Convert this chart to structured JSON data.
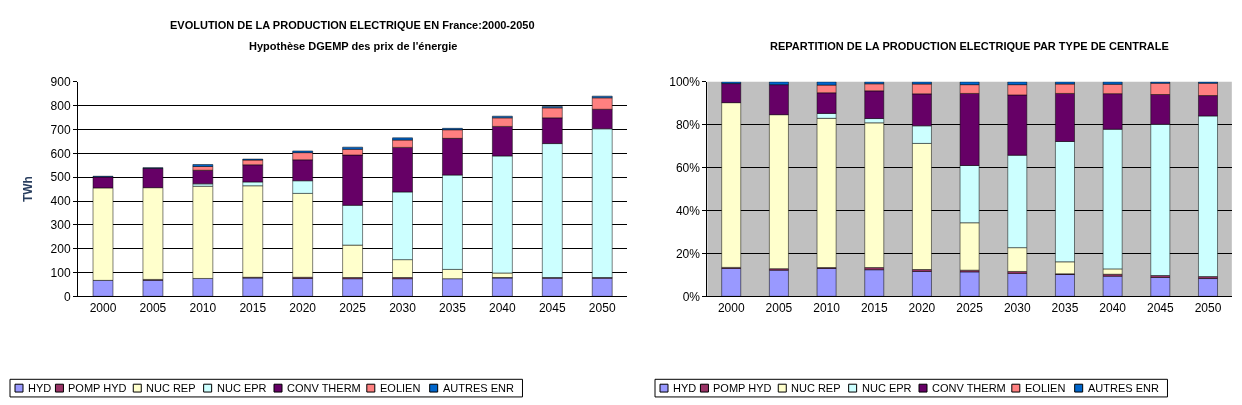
{
  "chart_data": [
    {
      "type": "bar",
      "stacked": true,
      "title": "EVOLUTION DE LA PRODUCTION ELECTRIQUE EN France:2000-2050",
      "subtitle": "Hypothèse DGEMP des prix de l'énergie",
      "ylabel": "TWh",
      "categories": [
        "2000",
        "2005",
        "2010",
        "2015",
        "2020",
        "2025",
        "2030",
        "2035",
        "2040",
        "2045",
        "2050"
      ],
      "series": [
        {
          "name": "HYD",
          "color": "#9999ff",
          "values": [
            67,
            67,
            75,
            77,
            75,
            74,
            74,
            74,
            77,
            76,
            76
          ]
        },
        {
          "name": "POMP HYD",
          "color": "#993366",
          "values": [
            null,
            4,
            null,
            3,
            5,
            5,
            5,
            null,
            2,
            3,
            3
          ]
        },
        {
          "name": "NUC REP",
          "color": "#ffffcc",
          "values": [
            388,
            385,
            387,
            384,
            352,
            136,
            75,
            39,
            19,
            0,
            0
          ]
        },
        {
          "name": "NUC EPR",
          "color": "#ccffff",
          "values": [
            0,
            0,
            10,
            16,
            53,
            167,
            284,
            396,
            491,
            562,
            624
          ]
        },
        {
          "name": "CONV THERM",
          "color": "#660066",
          "values": [
            46,
            81,
            57,
            72,
            88,
            211,
            187,
            154,
            124,
            108,
            82
          ]
        },
        {
          "name": "EOLIEN",
          "color": "#ff8080",
          "values": [
            0,
            0,
            16,
            20,
            30,
            24,
            31,
            36,
            36,
            42,
            48
          ]
        },
        {
          "name": "AUTRES ENR",
          "color": "#0066cc",
          "values": [
            3,
            3,
            8,
            4,
            7,
            9,
            9,
            6,
            7,
            6,
            7
          ]
        }
      ],
      "ylim": [
        0,
        900
      ],
      "yticks": [
        0,
        100,
        200,
        300,
        400,
        500,
        600,
        700,
        800,
        900
      ],
      "grid": "y",
      "legend": "bottom"
    },
    {
      "type": "bar",
      "stacked": true,
      "title": "REPARTITION DE LA PRODUCTION ELECTRIQUE PAR TYPE DE CENTRALE",
      "categories": [
        "2000",
        "2005",
        "2010",
        "2015",
        "2020",
        "2025",
        "2030",
        "2035",
        "2040",
        "2045",
        "2050"
      ],
      "series": [
        {
          "name": "HYD",
          "color": "#9999ff",
          "values": [
            13.0,
            12.2,
            13.0,
            12.4,
            11.6,
            11.4,
            10.7,
            10.2,
            9.4,
            8.8,
            8.3
          ]
        },
        {
          "name": "POMP HYD",
          "color": "#993366",
          "values": [
            0.5,
            0.7,
            0.4,
            1.0,
            0.9,
            0.8,
            0.9,
            0.3,
            0.9,
            0.9,
            0.9
          ]
        },
        {
          "name": "NUC REP",
          "color": "#ffffcc",
          "values": [
            76.8,
            71.8,
            69.6,
            67.5,
            58.8,
            22.1,
            11.1,
            5.6,
            2.5,
            0,
            0
          ]
        },
        {
          "name": "NUC EPR",
          "color": "#ccffff",
          "values": [
            0,
            0,
            2.3,
            2.0,
            8.2,
            26.7,
            43.1,
            56.1,
            65.1,
            70.5,
            74.9
          ]
        },
        {
          "name": "CONV THERM",
          "color": "#660066",
          "values": [
            8.9,
            14.0,
            9.6,
            12.9,
            14.9,
            33.6,
            28.1,
            22.4,
            16.6,
            13.9,
            9.5
          ]
        },
        {
          "name": "EOLIEN",
          "color": "#ff8080",
          "values": [
            0,
            0,
            3.6,
            3.3,
            4.6,
            4.1,
            4.8,
            4.4,
            4.4,
            5.3,
            5.8
          ]
        },
        {
          "name": "AUTRES ENR",
          "color": "#0066cc",
          "values": [
            0.8,
            1.3,
            1.5,
            0.9,
            1.0,
            1.3,
            1.3,
            1.0,
            1.1,
            0.6,
            0.6
          ]
        }
      ],
      "ylim": [
        0,
        100
      ],
      "yticks": [
        {
          "value": 0,
          "label": "0%"
        },
        {
          "value": 20,
          "label": "20%"
        },
        {
          "value": 40,
          "label": "40%"
        },
        {
          "value": 60,
          "label": "60%"
        },
        {
          "value": 80,
          "label": "80%"
        },
        {
          "value": 100,
          "label": "100%"
        }
      ],
      "grid": "y",
      "legend": "bottom"
    }
  ]
}
